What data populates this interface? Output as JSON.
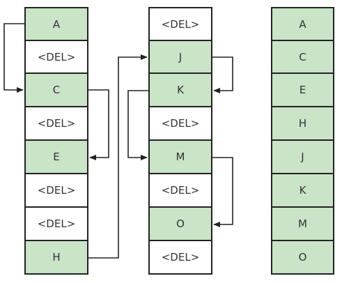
{
  "colors": {
    "kept": "#c9e4c7",
    "deleted": "#ffffff",
    "border": "#222222",
    "text": "#333333"
  },
  "columns": [
    {
      "name": "left-list",
      "cells": [
        {
          "label": "A",
          "kept": true
        },
        {
          "label": "<DEL>",
          "kept": false
        },
        {
          "label": "C",
          "kept": true
        },
        {
          "label": "<DEL>",
          "kept": false
        },
        {
          "label": "E",
          "kept": true
        },
        {
          "label": "<DEL>",
          "kept": false
        },
        {
          "label": "<DEL>",
          "kept": false
        },
        {
          "label": "H",
          "kept": true
        }
      ]
    },
    {
      "name": "middle-list",
      "cells": [
        {
          "label": "<DEL>",
          "kept": false
        },
        {
          "label": "J",
          "kept": true
        },
        {
          "label": "K",
          "kept": true
        },
        {
          "label": "<DEL>",
          "kept": false
        },
        {
          "label": "M",
          "kept": true
        },
        {
          "label": "<DEL>",
          "kept": false
        },
        {
          "label": "O",
          "kept": true
        },
        {
          "label": "<DEL>",
          "kept": false
        }
      ]
    },
    {
      "name": "right-list",
      "cells": [
        {
          "label": "A",
          "kept": true
        },
        {
          "label": "C",
          "kept": true
        },
        {
          "label": "E",
          "kept": true
        },
        {
          "label": "H",
          "kept": true
        },
        {
          "label": "J",
          "kept": true
        },
        {
          "label": "K",
          "kept": true
        },
        {
          "label": "M",
          "kept": true
        },
        {
          "label": "O",
          "kept": true
        }
      ]
    }
  ]
}
